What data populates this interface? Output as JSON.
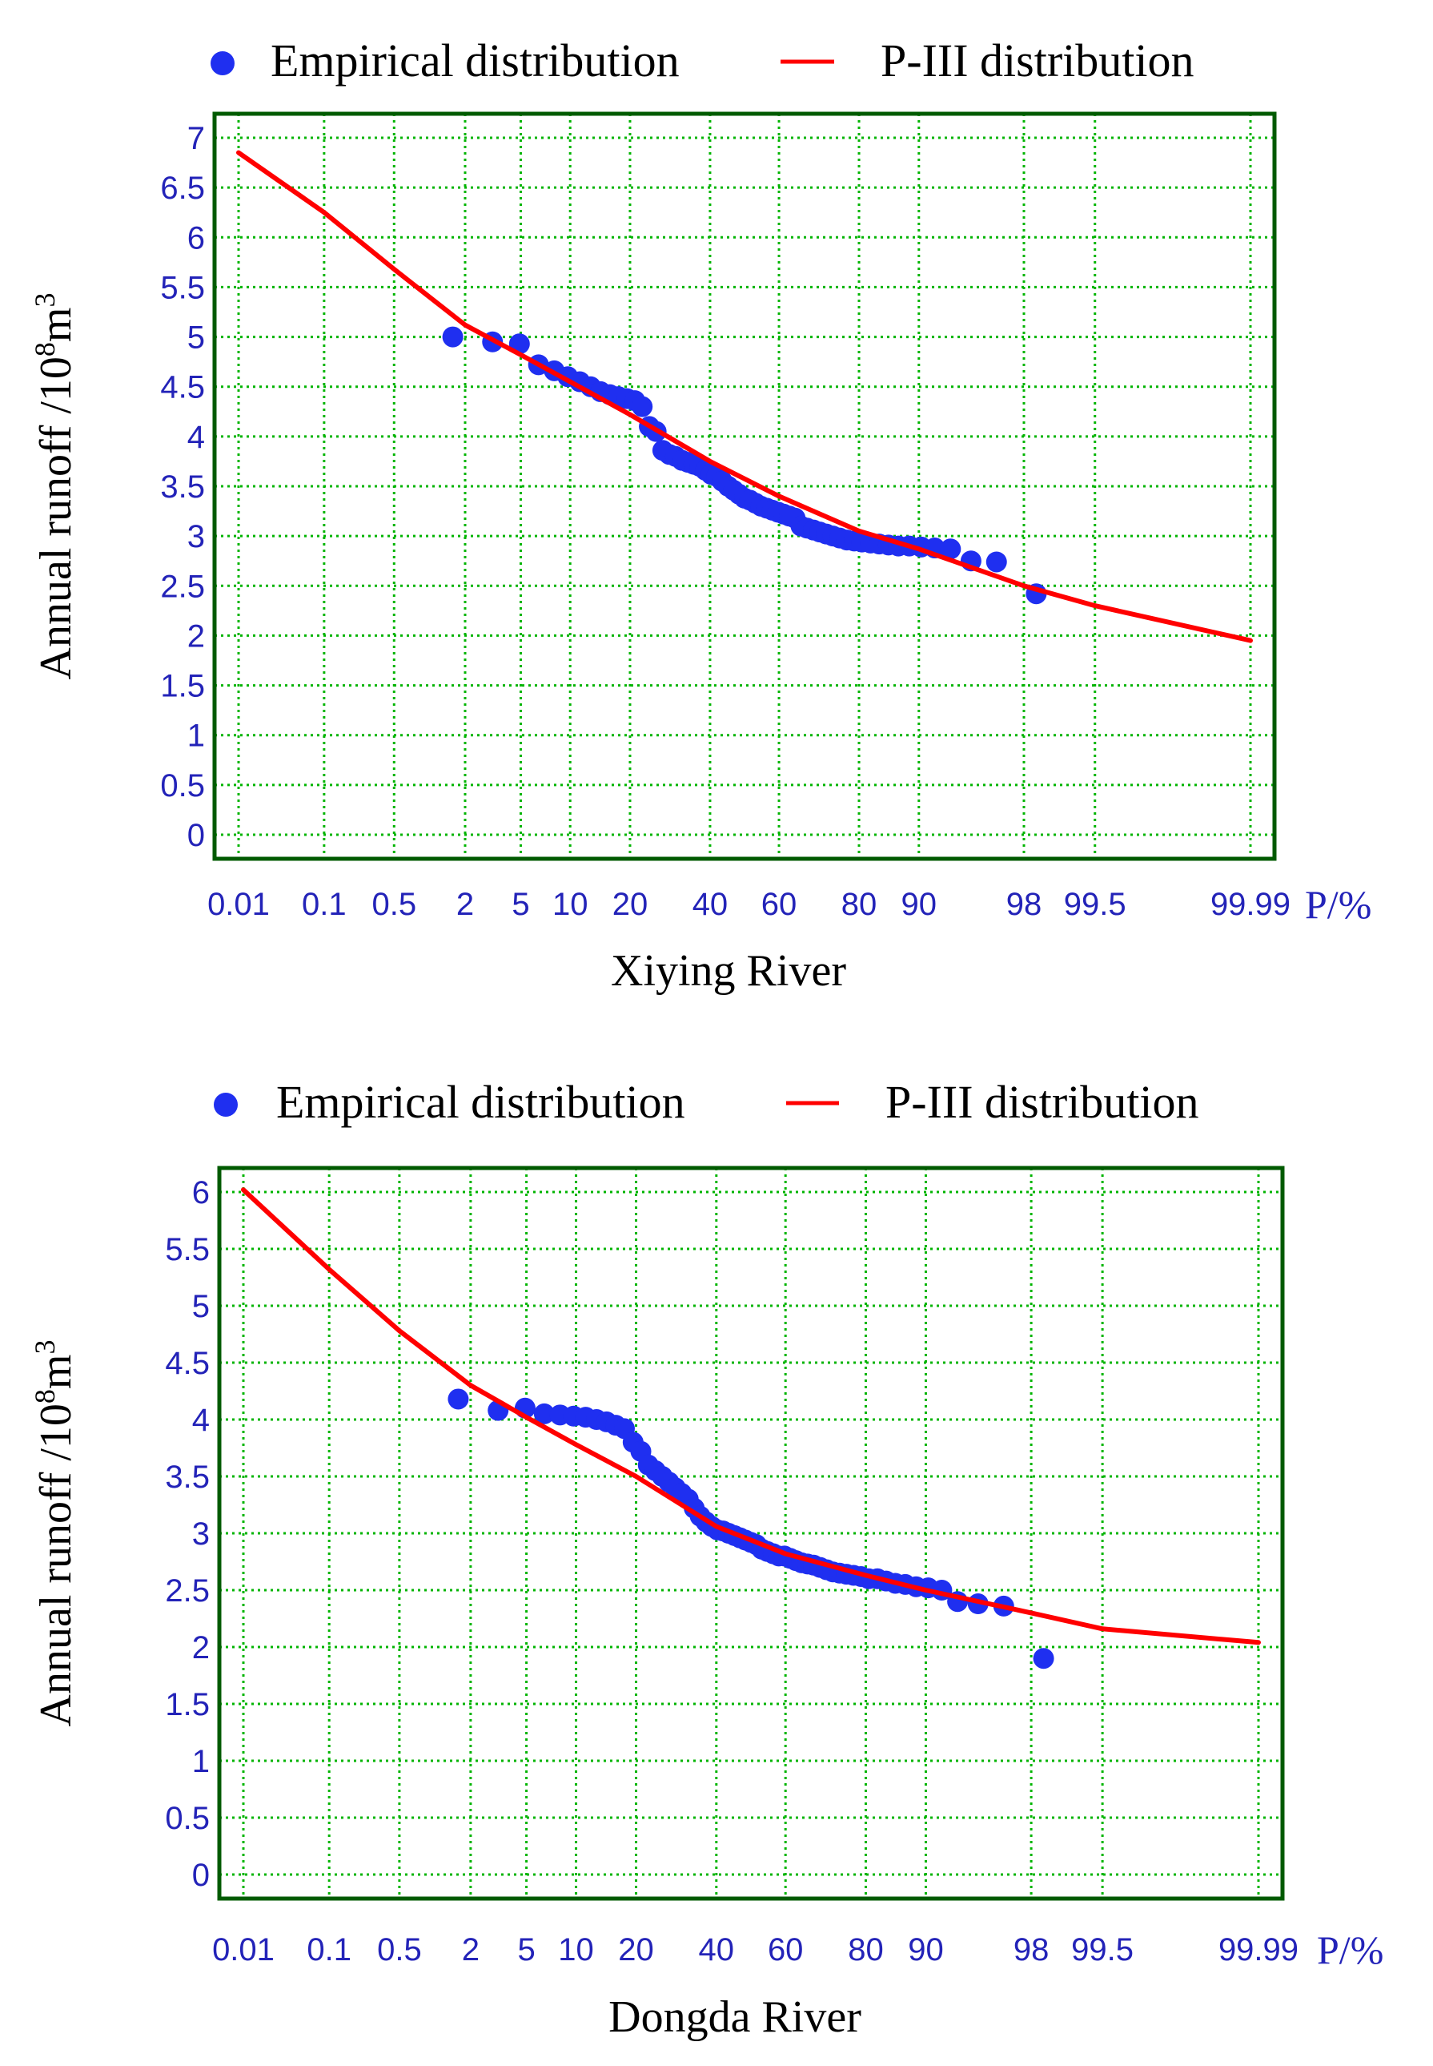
{
  "chart_data": [
    {
      "type": "scatter",
      "title": "Xiying River",
      "xlabel": "Xiying River",
      "ylabel": "Annual runoff /10",
      "ylabel_exp1": "8",
      "ylabel_mid": "m",
      "ylabel_exp2": "3",
      "x_scale": "probability",
      "x_unit": "P/%",
      "x_ticks": [
        0.01,
        0.1,
        0.5,
        2,
        5,
        10,
        20,
        40,
        60,
        80,
        90,
        98,
        99.5,
        99.99
      ],
      "x_tick_labels": [
        "0.01",
        "0.1",
        "0.5",
        "2",
        "5",
        "10",
        "20",
        "40",
        "60",
        "80",
        "90",
        "98",
        "99.5",
        "99.99"
      ],
      "ylim": [
        0,
        7
      ],
      "y_ticks": [
        0,
        0.5,
        1,
        1.5,
        2,
        2.5,
        3,
        3.5,
        4,
        4.5,
        5,
        5.5,
        6,
        6.5,
        7
      ],
      "y_tick_labels": [
        "0",
        "0.5",
        "1",
        "1.5",
        "2",
        "2.5",
        "3",
        "3.5",
        "4",
        "4.5",
        "5",
        "5.5",
        "6",
        "6.5",
        "7"
      ],
      "legend": [
        "Empirical distribution",
        "P-III distribution"
      ],
      "colors": {
        "points": "#1f2ff0",
        "curve": "#ff0000",
        "grid": "#00b400",
        "frame": "#005a00",
        "ticks": "#2323b8"
      },
      "series": [
        {
          "name": "Empirical distribution",
          "p": [
            1.6,
            3.2,
            4.9,
            6.5,
            8.1,
            9.7,
            11.3,
            12.9,
            14.5,
            16.1,
            17.7,
            19.4,
            21.0,
            22.6,
            24.2,
            25.8,
            27.4,
            29.0,
            30.6,
            32.3,
            33.9,
            35.5,
            37.1,
            38.7,
            40.3,
            41.9,
            43.5,
            45.2,
            46.8,
            48.4,
            50.0,
            51.6,
            53.2,
            54.8,
            56.5,
            58.1,
            59.7,
            61.3,
            62.9,
            64.5,
            66.1,
            67.7,
            69.4,
            71.0,
            72.6,
            74.2,
            75.8,
            77.4,
            79.0,
            80.6,
            82.3,
            83.9,
            85.5,
            87.1,
            88.7,
            90.3,
            91.9,
            93.5,
            95.2,
            96.8,
            98.4
          ],
          "y": [
            5.0,
            4.95,
            4.93,
            4.72,
            4.66,
            4.6,
            4.55,
            4.5,
            4.45,
            4.42,
            4.4,
            4.38,
            4.36,
            4.3,
            4.1,
            4.05,
            3.86,
            3.82,
            3.8,
            3.76,
            3.74,
            3.72,
            3.7,
            3.66,
            3.62,
            3.6,
            3.55,
            3.5,
            3.46,
            3.42,
            3.38,
            3.36,
            3.33,
            3.3,
            3.28,
            3.26,
            3.24,
            3.22,
            3.2,
            3.18,
            3.1,
            3.08,
            3.06,
            3.04,
            3.02,
            3.0,
            2.98,
            2.96,
            2.95,
            2.94,
            2.93,
            2.92,
            2.91,
            2.9,
            2.9,
            2.89,
            2.88,
            2.87,
            2.75,
            2.74,
            2.42
          ]
        },
        {
          "name": "P-III distribution",
          "p": [
            0.01,
            0.1,
            0.5,
            2,
            5,
            10,
            20,
            40,
            60,
            80,
            90,
            98,
            99.5,
            99.99
          ],
          "y": [
            6.85,
            6.25,
            5.68,
            5.12,
            4.82,
            4.55,
            4.22,
            3.75,
            3.4,
            3.05,
            2.87,
            2.5,
            2.3,
            1.95
          ]
        }
      ]
    },
    {
      "type": "scatter",
      "title": "Dongda River",
      "xlabel": "Dongda River",
      "ylabel": "Annual runoff /10",
      "ylabel_exp1": "8",
      "ylabel_mid": "m",
      "ylabel_exp2": "3",
      "x_scale": "probability",
      "x_unit": "P/%",
      "x_ticks": [
        0.01,
        0.1,
        0.5,
        2,
        5,
        10,
        20,
        40,
        60,
        80,
        90,
        98,
        99.5,
        99.99
      ],
      "x_tick_labels": [
        "0.01",
        "0.1",
        "0.5",
        "2",
        "5",
        "10",
        "20",
        "40",
        "60",
        "80",
        "90",
        "98",
        "99.5",
        "99.99"
      ],
      "ylim": [
        0,
        6
      ],
      "y_ticks": [
        0,
        0.5,
        1,
        1.5,
        2,
        2.5,
        3,
        3.5,
        4,
        4.5,
        5,
        5.5,
        6
      ],
      "y_tick_labels": [
        "0",
        "0.5",
        "1",
        "1.5",
        "2",
        "2.5",
        "3",
        "3.5",
        "4",
        "4.5",
        "5",
        "5.5",
        "6"
      ],
      "legend": [
        "Empirical distribution",
        "P-III distribution"
      ],
      "colors": {
        "points": "#1f2ff0",
        "curve": "#ff0000",
        "grid": "#00b400",
        "frame": "#005a00",
        "ticks": "#2323b8"
      },
      "series": [
        {
          "name": "Empirical distribution",
          "p": [
            1.6,
            3.2,
            4.9,
            6.5,
            8.1,
            9.7,
            11.3,
            12.9,
            14.5,
            16.1,
            17.7,
            19.4,
            21.0,
            22.6,
            24.2,
            25.8,
            27.4,
            29.0,
            30.6,
            32.3,
            33.9,
            35.5,
            37.1,
            38.7,
            40.3,
            41.9,
            43.5,
            45.2,
            46.8,
            48.4,
            50.0,
            51.6,
            53.2,
            54.8,
            56.5,
            58.1,
            59.7,
            61.3,
            62.9,
            64.5,
            66.1,
            67.7,
            69.4,
            71.0,
            72.6,
            74.2,
            75.8,
            77.4,
            79.0,
            80.6,
            82.3,
            83.9,
            85.5,
            87.1,
            88.7,
            90.3,
            91.9,
            93.5,
            95.2,
            96.8,
            98.4
          ],
          "y": [
            4.18,
            4.08,
            4.1,
            4.05,
            4.04,
            4.03,
            4.02,
            4.0,
            3.98,
            3.95,
            3.92,
            3.8,
            3.72,
            3.6,
            3.55,
            3.5,
            3.45,
            3.4,
            3.35,
            3.3,
            3.22,
            3.15,
            3.1,
            3.06,
            3.03,
            3.02,
            3.0,
            2.98,
            2.96,
            2.94,
            2.92,
            2.9,
            2.86,
            2.84,
            2.82,
            2.8,
            2.8,
            2.78,
            2.76,
            2.74,
            2.73,
            2.72,
            2.7,
            2.68,
            2.66,
            2.65,
            2.64,
            2.63,
            2.62,
            2.6,
            2.6,
            2.58,
            2.56,
            2.55,
            2.53,
            2.52,
            2.5,
            2.4,
            2.38,
            2.36,
            1.9
          ]
        },
        {
          "name": "P-III distribution",
          "p": [
            0.01,
            0.1,
            0.5,
            2,
            5,
            10,
            20,
            40,
            60,
            80,
            90,
            98,
            99.5,
            99.99
          ],
          "y": [
            6.02,
            5.32,
            4.78,
            4.3,
            4.02,
            3.78,
            3.5,
            3.06,
            2.82,
            2.63,
            2.5,
            2.3,
            2.16,
            2.04
          ]
        }
      ]
    }
  ]
}
